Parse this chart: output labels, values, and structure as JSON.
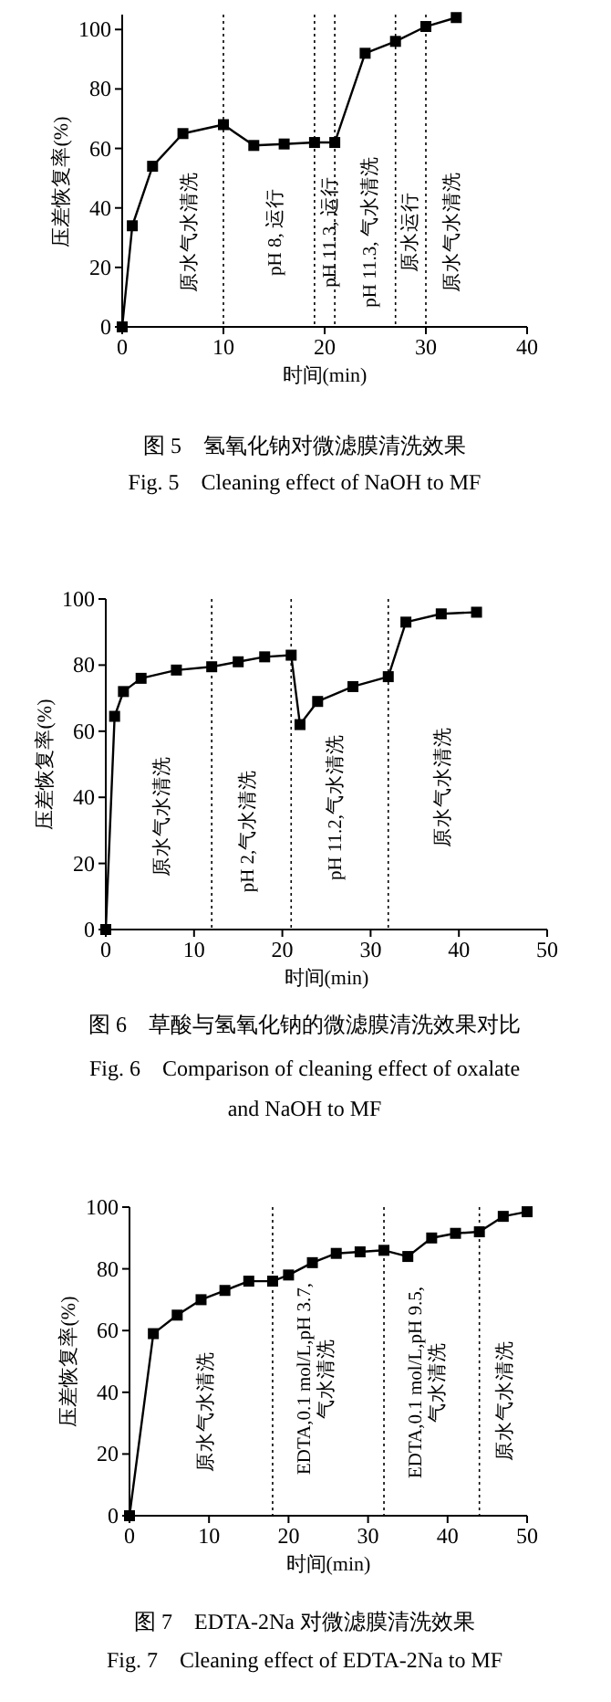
{
  "chart_data": [
    {
      "type": "line",
      "title": "图 5　氢氧化钠对微滤膜清洗效果",
      "subtitle": "Fig. 5　Cleaning effect of NaOH to MF",
      "xlabel": "时间(min)",
      "ylabel": "压差恢复率(%)",
      "x": [
        0,
        1,
        3,
        6,
        10,
        13,
        16,
        19,
        21,
        24,
        27,
        30,
        33
      ],
      "series": [
        {
          "color": "#000000",
          "values": [
            0,
            34,
            54,
            65,
            68,
            61,
            61.5,
            62,
            62,
            92,
            96,
            101,
            104
          ]
        }
      ],
      "xlim": [
        0,
        40
      ],
      "xticks": [
        0,
        10,
        20,
        30,
        40
      ],
      "ylim": [
        0,
        105
      ],
      "yticks": [
        0,
        20,
        40,
        60,
        80,
        100
      ],
      "marker": "square",
      "line_style": "solid",
      "grid": false,
      "ref_lines": [
        {
          "axis": "x",
          "value": 10,
          "line_style": "dotted"
        },
        {
          "axis": "x",
          "value": 19,
          "line_style": "dotted"
        },
        {
          "axis": "x",
          "value": 21,
          "line_style": "dotted"
        },
        {
          "axis": "x",
          "value": 27,
          "line_style": "dotted"
        },
        {
          "axis": "x",
          "value": 30,
          "line_style": "dotted"
        }
      ],
      "annotations": [
        "原水气水清洗",
        "pH 8, 运行",
        "pH 11.3, 运行",
        "pH 11.3, 气水清洗",
        "原水运行",
        "原水气水清洗"
      ]
    },
    {
      "type": "line",
      "title": "图 6　草酸与氢氧化钠的微滤膜清洗效果对比",
      "subtitle": "Fig. 6　Comparison of cleaning effect of oxalate and NaOH to MF",
      "xlabel": "时间(min)",
      "ylabel": "压差恢复率(%)",
      "x": [
        0,
        1,
        2,
        4,
        8,
        12,
        15,
        18,
        21,
        22,
        24,
        28,
        32,
        34,
        38,
        42
      ],
      "series": [
        {
          "color": "#000000",
          "values": [
            0,
            64.5,
            72,
            76,
            78.5,
            79.5,
            81,
            82.5,
            83,
            62,
            69,
            73.5,
            76.5,
            93,
            95.5,
            96
          ]
        }
      ],
      "xlim": [
        0,
        50
      ],
      "xticks": [
        0,
        10,
        20,
        30,
        40,
        50
      ],
      "ylim": [
        0,
        100
      ],
      "yticks": [
        0,
        20,
        40,
        60,
        80,
        100
      ],
      "marker": "square",
      "line_style": "solid",
      "grid": false,
      "ref_lines": [
        {
          "axis": "x",
          "value": 12,
          "line_style": "dotted"
        },
        {
          "axis": "x",
          "value": 21,
          "line_style": "dotted"
        },
        {
          "axis": "x",
          "value": 32,
          "line_style": "dotted"
        }
      ],
      "annotations": [
        "原水气水清洗",
        "pH 2,气水清洗",
        "pH 11.2,气水清洗",
        "原水气水清洗"
      ]
    },
    {
      "type": "line",
      "title": "图 7　EDTA-2Na 对微滤膜清洗效果",
      "subtitle": "Fig. 7　Cleaning effect of EDTA-2Na to MF",
      "xlabel": "时间(min)",
      "ylabel": "压差恢复率(%)",
      "x": [
        0,
        3,
        6,
        9,
        12,
        15,
        18,
        20,
        23,
        26,
        29,
        32,
        35,
        38,
        41,
        44,
        47,
        50
      ],
      "series": [
        {
          "color": "#000000",
          "values": [
            0,
            59,
            65,
            70,
            73,
            76,
            76,
            78,
            82,
            85,
            85.5,
            86,
            84,
            90,
            91.5,
            92,
            97,
            98.5
          ]
        }
      ],
      "xlim": [
        0,
        50
      ],
      "xticks": [
        0,
        10,
        20,
        30,
        40,
        50
      ],
      "ylim": [
        0,
        100
      ],
      "yticks": [
        0,
        20,
        40,
        60,
        80,
        100
      ],
      "marker": "square",
      "line_style": "solid",
      "grid": false,
      "ref_lines": [
        {
          "axis": "x",
          "value": 18,
          "line_style": "dotted"
        },
        {
          "axis": "x",
          "value": 32,
          "line_style": "dotted"
        },
        {
          "axis": "x",
          "value": 44,
          "line_style": "dotted"
        }
      ],
      "annotations": [
        "原水气水清洗",
        "EDTA,0.1 mol/L,pH 3.7,\n气水清洗",
        "EDTA,0.1 mol/L,pH 9.5,\n气水清洗",
        "原水气水清洗"
      ]
    }
  ]
}
